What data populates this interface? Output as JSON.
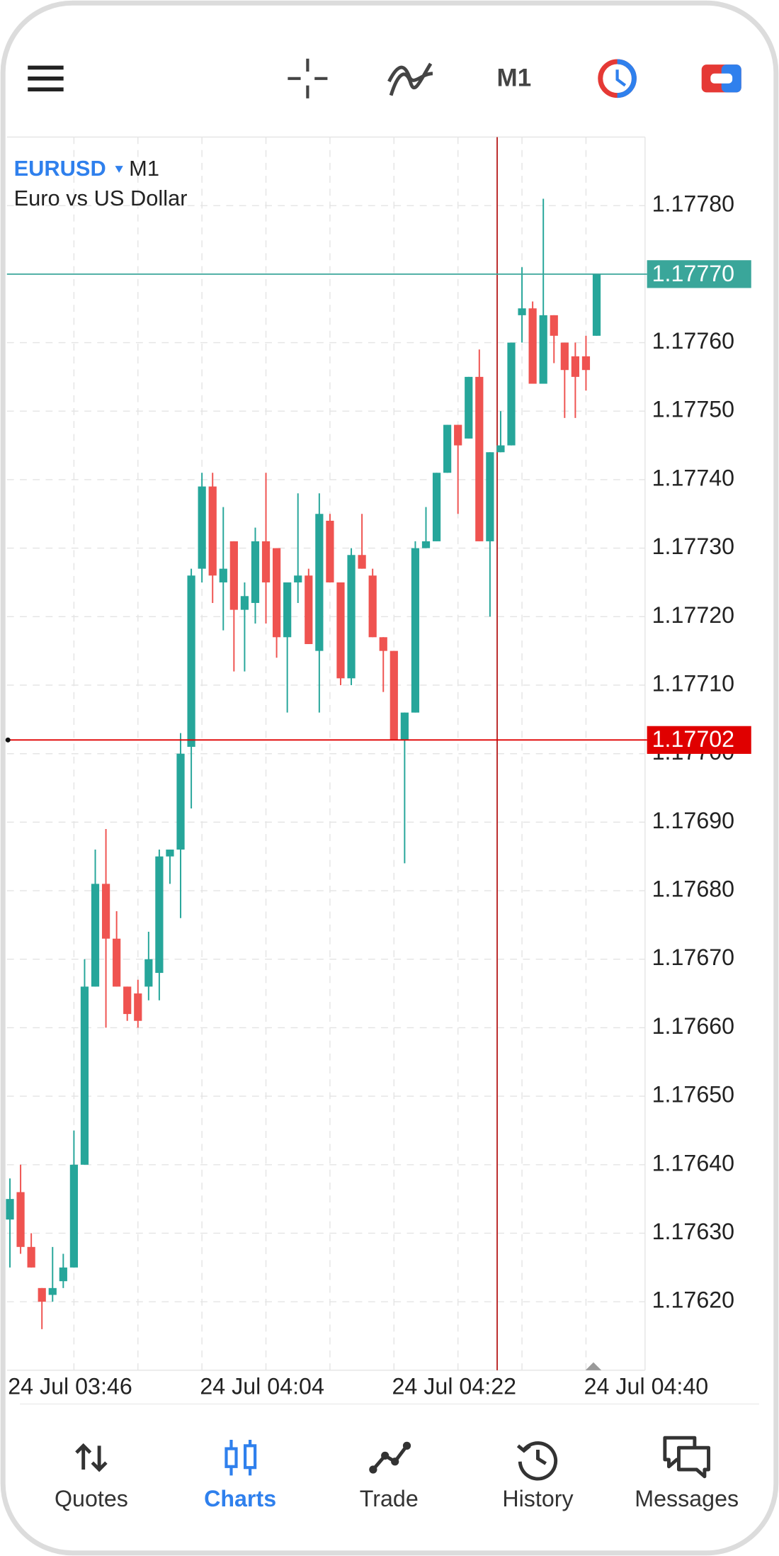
{
  "toolbar": {
    "timeframe": "M1"
  },
  "chart_data": {
    "type": "candlestick",
    "symbol": "EURUSD",
    "timeframe": "M1",
    "description": "Euro vs US Dollar",
    "categories": [
      "24 Jul 03:46",
      null,
      null,
      null,
      null,
      null,
      null,
      null,
      null,
      null,
      null,
      null,
      null,
      null,
      null,
      null,
      null,
      null,
      "24 Jul 04:04",
      null,
      null,
      null,
      null,
      null,
      null,
      null,
      null,
      null,
      null,
      null,
      null,
      null,
      null,
      null,
      null,
      null,
      "24 Jul 04:22",
      null,
      null,
      null,
      null,
      null,
      null,
      null,
      null,
      null,
      null,
      null,
      null,
      null,
      null,
      null,
      null,
      null,
      "24 Jul 04:40",
      null
    ],
    "open": [
      1.17632,
      1.17636,
      1.17628,
      1.17622,
      1.17621,
      1.17623,
      1.17625,
      1.1764,
      1.17666,
      1.17681,
      1.17673,
      1.17666,
      1.17665,
      1.17666,
      1.17668,
      1.17685,
      1.17686,
      1.17701,
      1.17727,
      1.17739,
      1.17725,
      1.17731,
      1.17721,
      1.17722,
      1.17731,
      1.1773,
      1.17717,
      1.17725,
      1.17726,
      1.17715,
      1.17734,
      1.17725,
      1.17711,
      1.17729,
      1.17726,
      1.17717,
      1.17715,
      1.17702,
      1.17706,
      1.1773,
      1.17731,
      1.17741,
      1.17748,
      1.17746,
      1.17755,
      1.17731,
      1.17744,
      1.17745,
      1.17764,
      1.17765,
      1.17754,
      1.17764,
      1.1776,
      1.17758,
      1.17758,
      1.17761
    ],
    "high": [
      1.17638,
      1.1764,
      1.1763,
      1.17622,
      1.17628,
      1.17627,
      1.17645,
      1.1767,
      1.17686,
      1.17689,
      1.17677,
      1.17666,
      1.17667,
      1.17674,
      1.17686,
      1.17686,
      1.17703,
      1.17727,
      1.17741,
      1.17741,
      1.17736,
      1.17731,
      1.17725,
      1.17733,
      1.17741,
      1.1773,
      1.17725,
      1.17738,
      1.17727,
      1.17738,
      1.17735,
      1.17725,
      1.1773,
      1.17735,
      1.17727,
      1.17717,
      1.17715,
      1.17706,
      1.17731,
      1.17736,
      1.17741,
      1.17748,
      1.17748,
      1.17755,
      1.17759,
      1.17744,
      1.1775,
      1.1776,
      1.17771,
      1.17766,
      1.17781,
      1.17764,
      1.1776,
      1.1776,
      1.17761,
      1.1777
    ],
    "low": [
      1.17625,
      1.17627,
      1.17625,
      1.17616,
      1.1762,
      1.17622,
      1.17625,
      1.1764,
      1.17666,
      1.1766,
      1.17666,
      1.17661,
      1.1766,
      1.17664,
      1.17664,
      1.17681,
      1.17676,
      1.17692,
      1.17725,
      1.17722,
      1.17718,
      1.17712,
      1.17712,
      1.17719,
      1.17719,
      1.17714,
      1.17706,
      1.17722,
      1.17716,
      1.17706,
      1.17725,
      1.1771,
      1.1771,
      1.17727,
      1.17717,
      1.17709,
      1.17702,
      1.17684,
      1.17706,
      1.1773,
      1.17731,
      1.17741,
      1.17735,
      1.17746,
      1.17731,
      1.1772,
      1.17744,
      1.17745,
      1.1776,
      1.17754,
      1.17754,
      1.17757,
      1.17749,
      1.17749,
      1.17753,
      1.17761
    ],
    "close": [
      1.17635,
      1.17628,
      1.17625,
      1.1762,
      1.17622,
      1.17625,
      1.1764,
      1.17666,
      1.17681,
      1.17673,
      1.17666,
      1.17662,
      1.17661,
      1.1767,
      1.17685,
      1.17686,
      1.177,
      1.17726,
      1.17739,
      1.17726,
      1.17727,
      1.17721,
      1.17723,
      1.17731,
      1.17725,
      1.17717,
      1.17725,
      1.17726,
      1.17716,
      1.17735,
      1.17725,
      1.17711,
      1.17729,
      1.17727,
      1.17717,
      1.17715,
      1.17702,
      1.17706,
      1.1773,
      1.17731,
      1.17741,
      1.17748,
      1.17745,
      1.17755,
      1.17731,
      1.17744,
      1.17745,
      1.1776,
      1.17765,
      1.17754,
      1.17764,
      1.17761,
      1.17756,
      1.17755,
      1.17756,
      1.1777
    ],
    "up_color": "#26a69a",
    "down_color": "#ef5350",
    "ylim": [
      1.1761,
      1.1779
    ],
    "yticks": [
      {
        "value": 1.1762,
        "label": "1.17620"
      },
      {
        "value": 1.1763,
        "label": "1.17630"
      },
      {
        "value": 1.1764,
        "label": "1.17640"
      },
      {
        "value": 1.1765,
        "label": "1.17650"
      },
      {
        "value": 1.1766,
        "label": "1.17660"
      },
      {
        "value": 1.1767,
        "label": "1.17670"
      },
      {
        "value": 1.1768,
        "label": "1.17680"
      },
      {
        "value": 1.1769,
        "label": "1.17690"
      },
      {
        "value": 1.177,
        "label": "1.17700"
      },
      {
        "value": 1.1771,
        "label": "1.17710"
      },
      {
        "value": 1.1772,
        "label": "1.17720"
      },
      {
        "value": 1.1773,
        "label": "1.17730"
      },
      {
        "value": 1.1774,
        "label": "1.17740"
      },
      {
        "value": 1.1775,
        "label": "1.17750"
      },
      {
        "value": 1.1776,
        "label": "1.17760"
      },
      {
        "value": 1.1777,
        "label": "1.17770"
      },
      {
        "value": 1.1778,
        "label": "1.17780"
      }
    ],
    "grid": true,
    "price_lines": [
      {
        "value": 1.1777,
        "label": "1.17770",
        "color": "#3aa69a"
      },
      {
        "value": 1.17702,
        "label": "1.17702",
        "color": "#e00000"
      }
    ]
  },
  "nav": {
    "items": [
      "Quotes",
      "Charts",
      "Trade",
      "History",
      "Messages"
    ],
    "active": 1,
    "active_color": "#2f80ed"
  }
}
